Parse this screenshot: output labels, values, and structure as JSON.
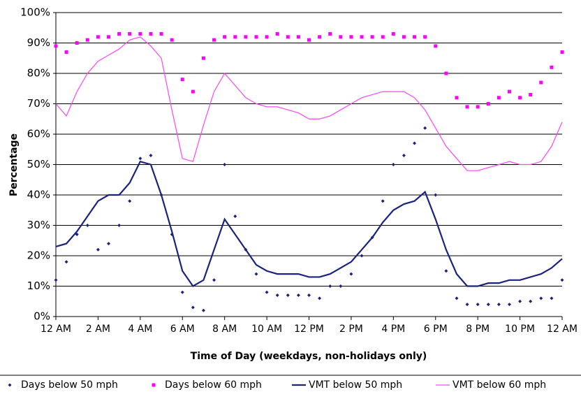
{
  "chart_data": {
    "type": "line",
    "y_axis_label": "Percentage",
    "x_axis_label": "Time of Day (weekdays, non-holidays only)",
    "x": [
      0,
      0.5,
      1,
      1.5,
      2,
      2.5,
      3,
      3.5,
      4,
      4.5,
      5,
      5.5,
      6,
      6.5,
      7,
      7.5,
      8,
      8.5,
      9,
      9.5,
      10,
      10.5,
      11,
      11.5,
      12,
      12.5,
      13,
      13.5,
      14,
      14.5,
      15,
      15.5,
      16,
      16.5,
      17,
      17.5,
      18,
      18.5,
      19,
      19.5,
      20,
      20.5,
      21,
      21.5,
      22,
      22.5,
      23,
      23.5,
      24
    ],
    "xlim": [
      0,
      24
    ],
    "xticks": [
      {
        "value": 0,
        "label": "12 AM"
      },
      {
        "value": 2,
        "label": "2 AM"
      },
      {
        "value": 4,
        "label": "4 AM"
      },
      {
        "value": 6,
        "label": "6 AM"
      },
      {
        "value": 8,
        "label": "8 AM"
      },
      {
        "value": 10,
        "label": "10 AM"
      },
      {
        "value": 12,
        "label": "12 PM"
      },
      {
        "value": 14,
        "label": "2 PM"
      },
      {
        "value": 16,
        "label": "4 PM"
      },
      {
        "value": 18,
        "label": "6 PM"
      },
      {
        "value": 20,
        "label": "8 PM"
      },
      {
        "value": 22,
        "label": "10 PM"
      },
      {
        "value": 24,
        "label": "12 AM"
      }
    ],
    "ylim": [
      0,
      100
    ],
    "yticks": [
      {
        "value": 0,
        "label": "0%"
      },
      {
        "value": 10,
        "label": "10%"
      },
      {
        "value": 20,
        "label": "20%"
      },
      {
        "value": 30,
        "label": "30%"
      },
      {
        "value": 40,
        "label": "40%"
      },
      {
        "value": 50,
        "label": "50%"
      },
      {
        "value": 60,
        "label": "60%"
      },
      {
        "value": 70,
        "label": "70%"
      },
      {
        "value": 80,
        "label": "80%"
      },
      {
        "value": 90,
        "label": "90%"
      },
      {
        "value": 100,
        "label": "100%"
      }
    ],
    "grid": true,
    "legend": "bottom",
    "series": [
      {
        "name": "Days below 50 mph",
        "color": "#1a237e",
        "marker": "diamond",
        "values": [
          12,
          18,
          27,
          30,
          22,
          24,
          30,
          38,
          52,
          53,
          40,
          27,
          8,
          3,
          2,
          12,
          50,
          33,
          22,
          14,
          8,
          7,
          7,
          7,
          7,
          6,
          10,
          10,
          14,
          20,
          26,
          38,
          50,
          53,
          57,
          62,
          40,
          15,
          6,
          4,
          4,
          4,
          4,
          4,
          5,
          5,
          6,
          6,
          12
        ]
      },
      {
        "name": "Days below 60 mph",
        "color": "#ff00ff",
        "marker": "square",
        "values": [
          89,
          87,
          90,
          91,
          92,
          92,
          93,
          93,
          93,
          93,
          93,
          91,
          78,
          74,
          85,
          91,
          92,
          92,
          92,
          92,
          92,
          93,
          92,
          92,
          91,
          92,
          93,
          92,
          92,
          92,
          92,
          92,
          93,
          92,
          92,
          92,
          89,
          80,
          72,
          69,
          69,
          70,
          72,
          74,
          72,
          73,
          77,
          82,
          87
        ]
      },
      {
        "name": "VMT below 50 mph",
        "color": "#1a237e",
        "marker": "line-thick",
        "values": [
          23,
          24,
          28,
          33,
          38,
          40,
          40,
          44,
          51,
          50,
          40,
          28,
          15,
          10,
          12,
          22,
          32,
          27,
          22,
          17,
          15,
          14,
          14,
          14,
          13,
          13,
          14,
          16,
          18,
          22,
          26,
          31,
          35,
          37,
          38,
          41,
          32,
          22,
          14,
          10,
          10,
          11,
          11,
          12,
          12,
          13,
          14,
          16,
          19
        ]
      },
      {
        "name": "VMT below 60 mph",
        "color": "#ff44ff",
        "marker": "line-thin",
        "values": [
          70,
          66,
          74,
          80,
          84,
          86,
          88,
          91,
          92,
          89,
          85,
          68,
          52,
          51,
          63,
          74,
          80,
          76,
          72,
          70,
          69,
          69,
          68,
          67,
          65,
          65,
          66,
          68,
          70,
          72,
          73,
          74,
          74,
          74,
          72,
          68,
          62,
          56,
          52,
          48,
          48,
          49,
          50,
          51,
          50,
          50,
          51,
          56,
          64
        ]
      }
    ]
  }
}
